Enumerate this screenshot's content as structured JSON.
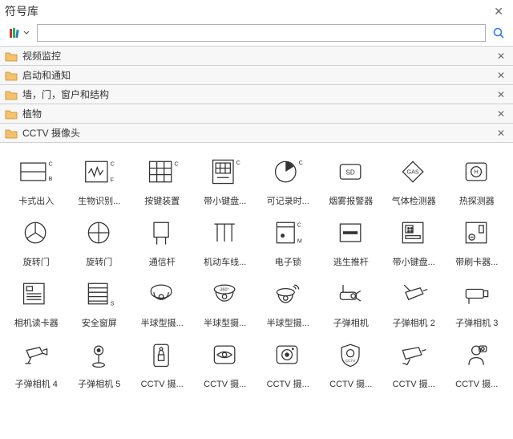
{
  "title": "符号库",
  "search": {
    "placeholder": ""
  },
  "categories": [
    {
      "label": "视频监控"
    },
    {
      "label": "启动和通知"
    },
    {
      "label": "墙，门，窗户和结构"
    },
    {
      "label": "植物"
    },
    {
      "label": "CCTV 摄像头"
    }
  ],
  "symbols": [
    {
      "label": "卡式出入",
      "icon": "card-access"
    },
    {
      "label": "生物识别...",
      "icon": "biometric"
    },
    {
      "label": "按键装置",
      "icon": "keypad"
    },
    {
      "label": "带小键盘...",
      "icon": "keypad-c"
    },
    {
      "label": "可记录时...",
      "icon": "recorder"
    },
    {
      "label": "烟雾报警器",
      "icon": "smoke-sd"
    },
    {
      "label": "气体检测器",
      "icon": "gas"
    },
    {
      "label": "热探测器",
      "icon": "heat"
    },
    {
      "label": "旋转门",
      "icon": "revolve1"
    },
    {
      "label": "旋转门",
      "icon": "revolve2"
    },
    {
      "label": "通信杆",
      "icon": "pole"
    },
    {
      "label": "机动车线...",
      "icon": "gate"
    },
    {
      "label": "电子锁",
      "icon": "elock"
    },
    {
      "label": "逃生推杆",
      "icon": "exitbar"
    },
    {
      "label": "带小键盘...",
      "icon": "keypad-panel"
    },
    {
      "label": "带刷卡器...",
      "icon": "card-reader-panel"
    },
    {
      "label": "相机读卡器",
      "icon": "cam-reader"
    },
    {
      "label": "安全窗屏",
      "icon": "blinds"
    },
    {
      "label": "半球型摄...",
      "icon": "dome1"
    },
    {
      "label": "半球型摄...",
      "icon": "dome360"
    },
    {
      "label": "半球型摄...",
      "icon": "dome-wave"
    },
    {
      "label": "子弹相机",
      "icon": "bullet1"
    },
    {
      "label": "子弹相机 2",
      "icon": "bullet2"
    },
    {
      "label": "子弹相机 3",
      "icon": "bullet3"
    },
    {
      "label": "子弹相机 4",
      "icon": "bullet4"
    },
    {
      "label": "子弹相机 5",
      "icon": "bullet5"
    },
    {
      "label": "CCTV 摄...",
      "icon": "cctv-lock"
    },
    {
      "label": "CCTV 摄...",
      "icon": "cctv-eye1"
    },
    {
      "label": "CCTV 摄...",
      "icon": "cctv-eye2"
    },
    {
      "label": "CCTV 摄...",
      "icon": "cctv-badge"
    },
    {
      "label": "CCTV 摄...",
      "icon": "cctv-cam"
    },
    {
      "label": "CCTV 摄...",
      "icon": "cctv-person"
    }
  ],
  "colors": {
    "border": "#d0d0d0",
    "panel_bg": "#f7f7f7",
    "search_icon": "#2b7de9",
    "stroke": "#333333"
  }
}
